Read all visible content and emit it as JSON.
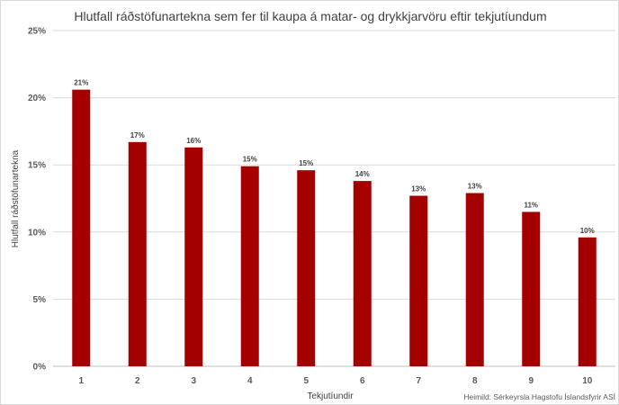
{
  "chart_data": {
    "type": "bar",
    "title": "Hlutfall ráðstöfunartekna  sem fer til kaupa á matar- og drykkjarvöru eftir tekjutíundum",
    "xlabel": "Tekjutíundir",
    "ylabel": "Hlutfall ráðstöfunartekna",
    "categories": [
      "1",
      "2",
      "3",
      "4",
      "5",
      "6",
      "7",
      "8",
      "9",
      "10"
    ],
    "values": [
      20.6,
      16.7,
      16.3,
      14.9,
      14.6,
      13.8,
      12.7,
      12.9,
      11.5,
      9.6
    ],
    "data_labels": [
      "21%",
      "17%",
      "16%",
      "15%",
      "15%",
      "14%",
      "13%",
      "13%",
      "11%",
      "10%"
    ],
    "ylim": [
      0,
      25
    ],
    "yticks": [
      "0%",
      "5%",
      "10%",
      "15%",
      "20%",
      "25%"
    ],
    "grid": true,
    "bar_color": "#A50000",
    "source": "Heimild: Sérkeyrsla Hagstofu Íslandsfyrir ASÍ"
  }
}
